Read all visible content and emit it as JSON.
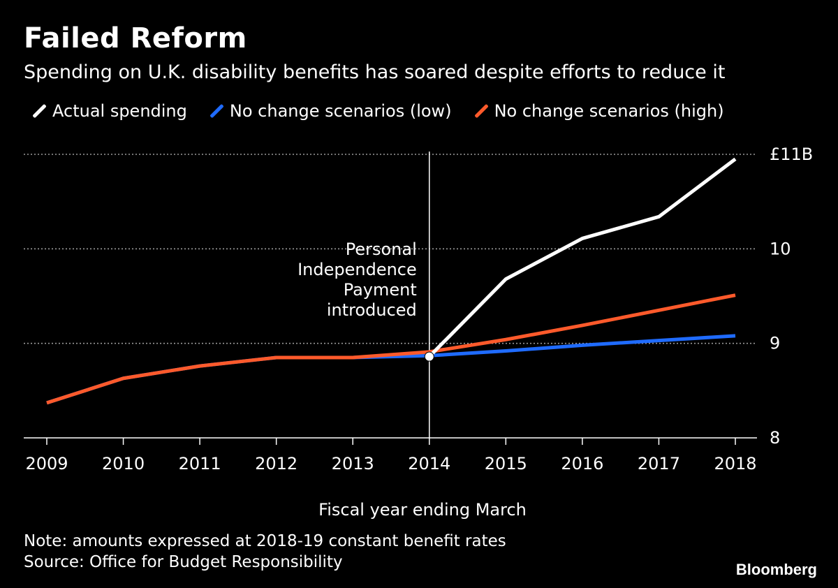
{
  "header": {
    "title": "Failed Reform",
    "subtitle": "Spending on U.K. disability benefits has soared despite efforts to reduce it"
  },
  "legend": [
    {
      "label": "Actual spending",
      "color": "#ffffff"
    },
    {
      "label": "No change scenarios (low)",
      "color": "#1f6bff"
    },
    {
      "label": "No change scenarios (high)",
      "color": "#ff5a2b"
    }
  ],
  "footer": {
    "note": "Note: amounts expressed at 2018-19 constant benefit rates",
    "source": "Source: Office for Budget Responsibility",
    "brand": "Bloomberg"
  },
  "chart_data": {
    "type": "line",
    "xlabel": "Fiscal year ending March",
    "ylabel": "",
    "x": [
      "2009",
      "2010",
      "2011",
      "2012",
      "2013",
      "2014",
      "2015",
      "2016",
      "2017",
      "2018"
    ],
    "ylim": [
      8,
      11
    ],
    "yticks": [
      8,
      9,
      10,
      11
    ],
    "ytick_labels": [
      "8",
      "9",
      "10",
      "£11B"
    ],
    "grid": true,
    "series": [
      {
        "name": "Actual spending",
        "color": "#ffffff",
        "x": [
          "2014",
          "2015",
          "2016",
          "2017",
          "2018"
        ],
        "values": [
          8.86,
          9.68,
          10.11,
          10.34,
          10.95
        ]
      },
      {
        "name": "No change scenarios (low)",
        "color": "#1f6bff",
        "x": [
          "2009",
          "2010",
          "2011",
          "2012",
          "2013",
          "2014",
          "2015",
          "2016",
          "2017",
          "2018"
        ],
        "values": [
          8.37,
          8.63,
          8.76,
          8.85,
          8.85,
          8.87,
          8.92,
          8.98,
          9.03,
          9.08
        ]
      },
      {
        "name": "No change scenarios (high)",
        "color": "#ff5a2b",
        "x": [
          "2009",
          "2010",
          "2011",
          "2012",
          "2013",
          "2014",
          "2015",
          "2016",
          "2017",
          "2018"
        ],
        "values": [
          8.37,
          8.63,
          8.76,
          8.85,
          8.85,
          8.91,
          9.04,
          9.19,
          9.35,
          9.51
        ]
      }
    ],
    "annotation": {
      "x": "2014",
      "lines": [
        "Personal",
        "Independence",
        "Payment",
        "introduced"
      ],
      "marker_value": 8.86
    }
  }
}
